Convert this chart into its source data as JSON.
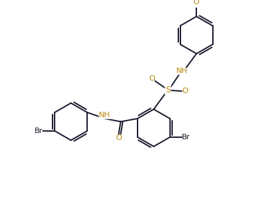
{
  "bg_color": "#ffffff",
  "line_color": "#1a1a2e",
  "orange_color": "#b8860b",
  "line_width": 1.4,
  "figsize": [
    3.66,
    2.93
  ],
  "dpi": 100,
  "xlim": [
    0,
    9.5
  ],
  "ylim": [
    0,
    7.5
  ]
}
